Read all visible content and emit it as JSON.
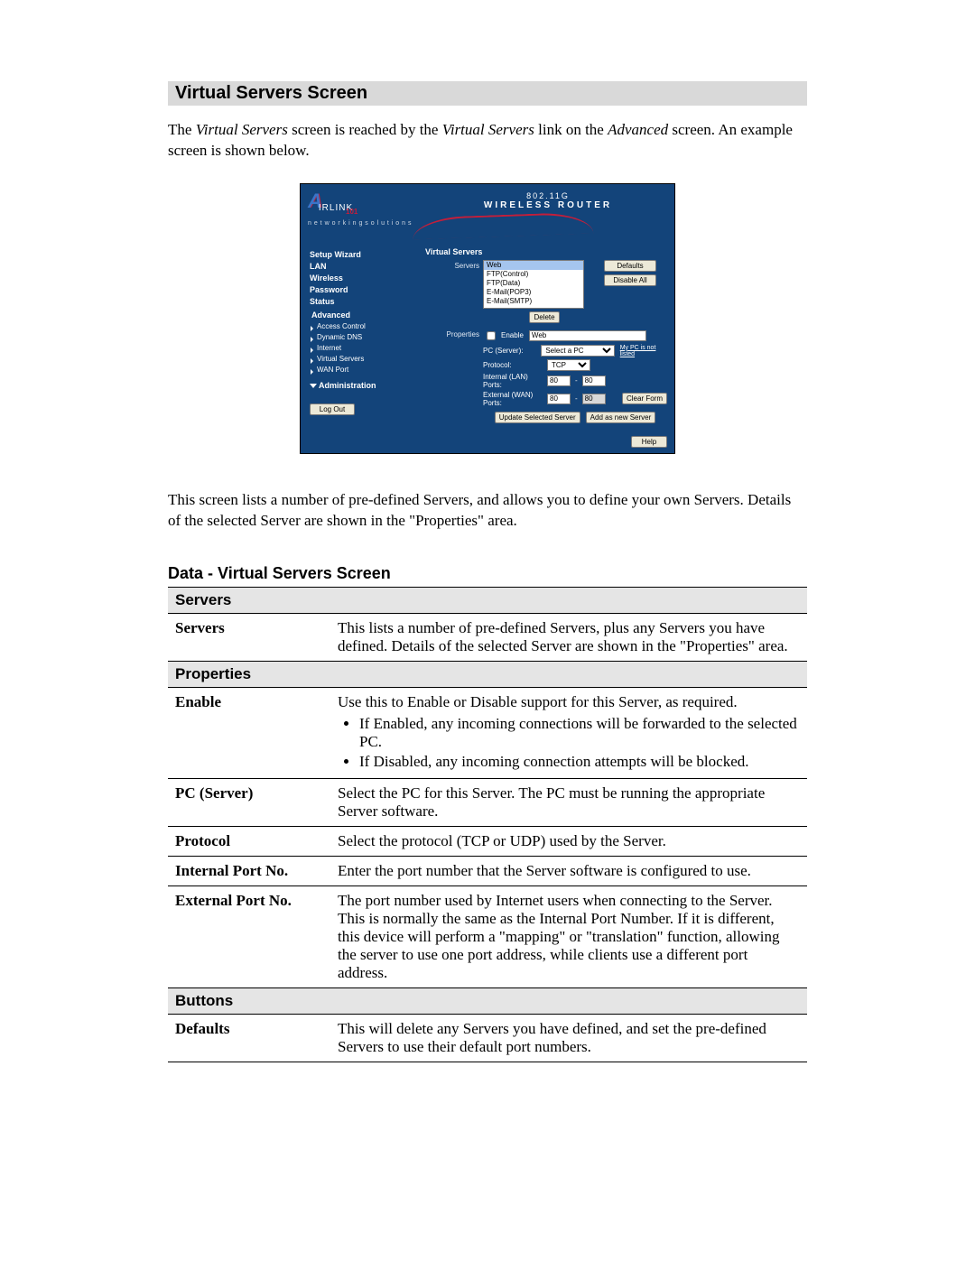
{
  "page": {
    "title": "Virtual Servers Screen",
    "intro_html": "The <i>Virtual Servers</i> screen is reached by the <i>Virtual Servers</i> link on the <i>Advanced</i> screen. An example screen is shown below.",
    "below_text": "This screen lists a number of pre-defined Servers, and allows you to define your own Servers. Details of the selected Server are shown in the \"Properties\" area.",
    "sub_heading": "Data - Virtual Servers Screen"
  },
  "router": {
    "brand_top": "802.11G",
    "brand_bottom": "WIRELESS ROUTER",
    "logo_main": "A",
    "logo_rest": "IRLINK",
    "logo_suffix": "101",
    "tagline": "n e t w o r k i n g s o l u t i o n s",
    "nav": [
      "Setup Wizard",
      "LAN",
      "Wireless",
      "Password",
      "Status"
    ],
    "advanced_label": "Advanced",
    "advanced_items": [
      "Access Control",
      "Dynamic DNS",
      "Internet",
      "Virtual Servers",
      "WAN Port"
    ],
    "admin_label": "Administration",
    "logout": "Log Out",
    "content_title": "Virtual Servers",
    "servers_label": "Servers",
    "properties_label": "Properties",
    "server_list": [
      "Web",
      "FTP(Control)",
      "FTP(Data)",
      "E-Mail(POP3)",
      "E-Mail(SMTP)"
    ],
    "buttons": {
      "defaults": "Defaults",
      "disable_all": "Disable All",
      "delete": "Delete",
      "clear_form": "Clear Form",
      "update": "Update Selected Server",
      "add_new": "Add as new Server",
      "help": "Help"
    },
    "props": {
      "enable_label": "Enable",
      "enable_value": "Web",
      "pc_label": "PC (Server):",
      "pc_value": "Select a PC",
      "pc_link": "My PC is not listed",
      "protocol_label": "Protocol:",
      "protocol_value": "TCP",
      "internal_label": "Internal (LAN) Ports:",
      "external_label": "External (WAN) Ports:",
      "port_a": "80",
      "port_b": "80",
      "port_c": "80",
      "port_d": "80"
    }
  },
  "table": {
    "sections": [
      {
        "header": "Servers",
        "rows": [
          {
            "field": "Servers",
            "desc_html": "This lists a number of pre-defined Servers, plus any Servers you have defined. Details of the selected Server are shown in the \"Properties\" area."
          }
        ]
      },
      {
        "header": "Properties",
        "rows": [
          {
            "field": "Enable",
            "desc_html": "Use this to Enable or Disable support for this Server, as required.<ul class=\"tight\"><li>If Enabled, any incoming connections will be forwarded to the selected PC.</li><li>If Disabled, any incoming connection attempts will be blocked.</li></ul>"
          },
          {
            "field": "PC (Server)",
            "desc_html": "Select the PC for this Server. The PC must be running the appropriate Server software."
          },
          {
            "field": "Protocol",
            "desc_html": "Select the protocol (TCP or UDP) used by the Server."
          },
          {
            "field": "Internal Port No.",
            "desc_html": "Enter the port number that the Server software is configured to use."
          },
          {
            "field": "External Port No.",
            "desc_html": "The port number used by Internet users when connecting to the Server. This is normally the same as the Internal Port Number. If it is different, this device will perform a \"mapping\" or \"translation\" function, allowing the server to use one port address, while clients use a different port address."
          }
        ]
      },
      {
        "header": "Buttons",
        "rows": [
          {
            "field": "Defaults",
            "desc_html": "This will delete any Servers you have defined, and set the pre-defined Servers to use their default port numbers."
          }
        ]
      }
    ]
  },
  "colors": {
    "router_bg": "#13447a",
    "gray_section": "#d9d9d9",
    "table_section_bg": "#e5e5e5",
    "swoosh": "#c41e3a"
  }
}
